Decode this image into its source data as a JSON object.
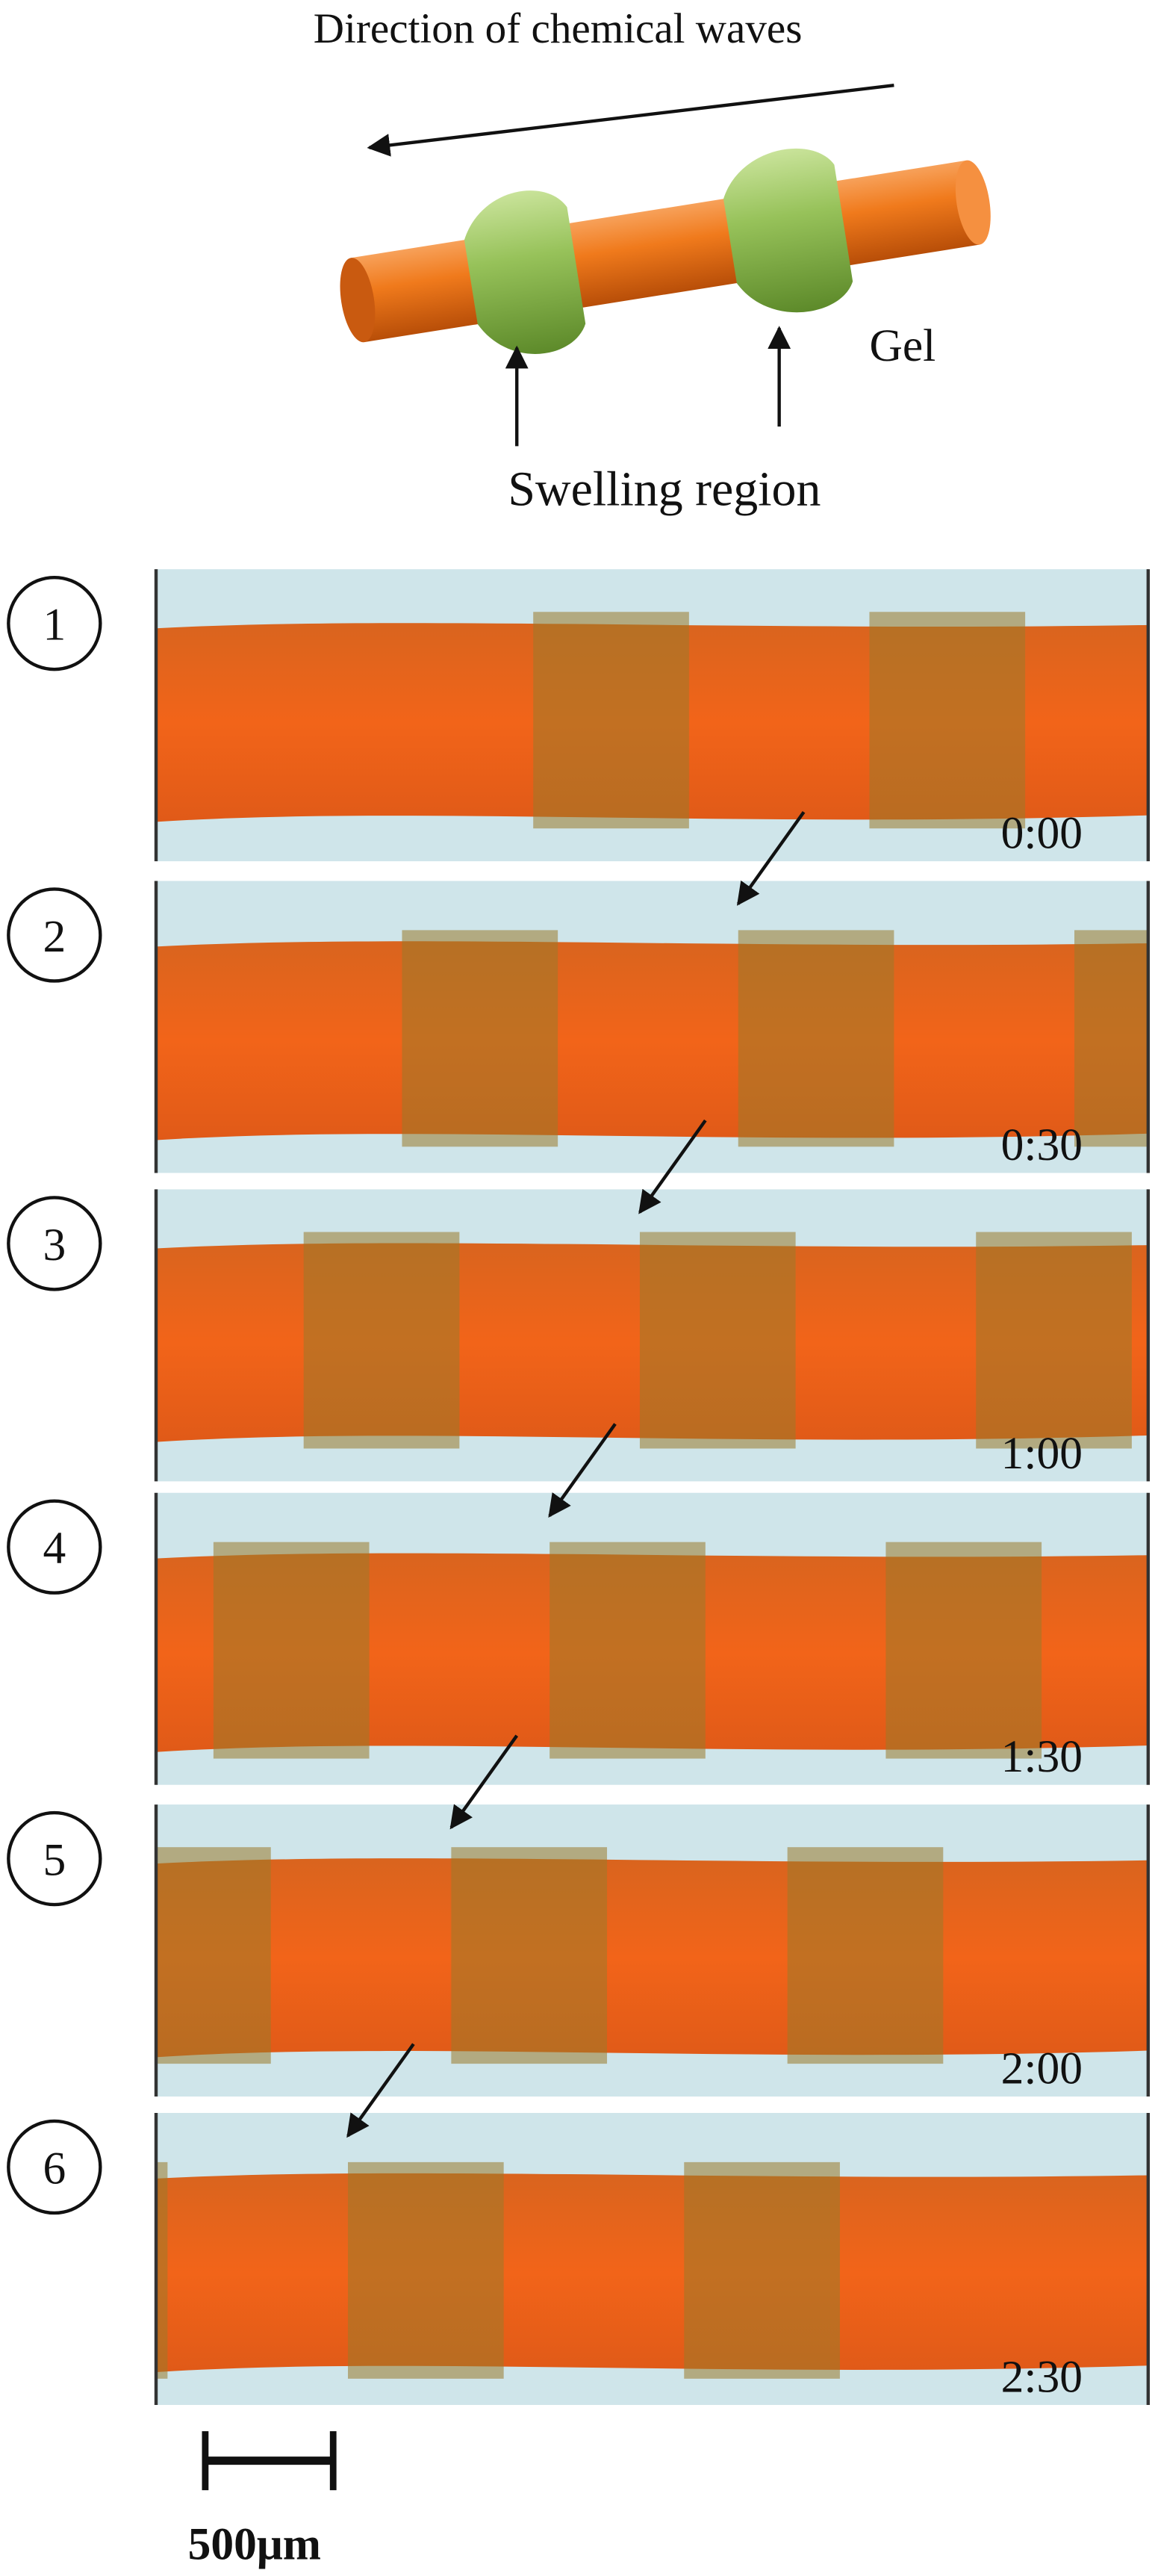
{
  "diagram": {
    "direction_label": "Direction of chemical waves",
    "gel_label": "Gel",
    "swelling_label": "Swelling region"
  },
  "panels": [
    {
      "number": "1",
      "time": "0:00"
    },
    {
      "number": "2",
      "time": "0:30"
    },
    {
      "number": "3",
      "time": "1:00"
    },
    {
      "number": "4",
      "time": "1:30"
    },
    {
      "number": "5",
      "time": "2:00"
    },
    {
      "number": "6",
      "time": "2:30"
    }
  ],
  "scale_bar": {
    "label": "500μm"
  }
}
